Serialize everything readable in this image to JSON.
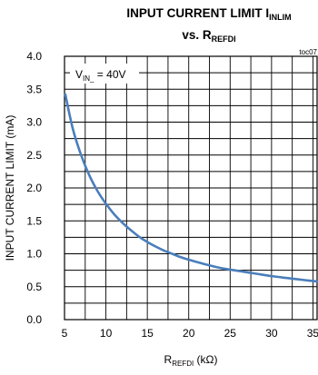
{
  "chart_data": {
    "type": "line",
    "title_line1": {
      "main": "INPUT CURRENT LIMIT I",
      "sub": "INLIM"
    },
    "title_line2": {
      "main": "vs. R",
      "sub": "REFDI"
    },
    "figure_id": "toc07",
    "xlabel": {
      "main": "R",
      "sub": "REFDI",
      "unit": " (kΩ)"
    },
    "ylabel": "INPUT CURRENT LIMIT (mA)",
    "xlim": [
      5,
      35.5
    ],
    "ylim": [
      0,
      4.0
    ],
    "x_ticks": [
      "5",
      "10",
      "15",
      "20",
      "25",
      "30",
      "35"
    ],
    "y_ticks": [
      "0.0",
      "0.5",
      "1.0",
      "1.5",
      "2.0",
      "2.5",
      "3.0",
      "3.5",
      "4.0"
    ],
    "grid": true,
    "annotation": {
      "pre": "V",
      "sub": "IN_",
      "post": " = 40V"
    },
    "series_color": "#4a7ebb",
    "series": [
      {
        "x": [
          5.1,
          6,
          7,
          8,
          9,
          10,
          11,
          12,
          13,
          14,
          15,
          16,
          17,
          18,
          19,
          20,
          22,
          24,
          26,
          28,
          30,
          32,
          34,
          35.5
        ],
        "values": [
          3.42,
          2.9,
          2.5,
          2.19,
          1.95,
          1.76,
          1.6,
          1.47,
          1.36,
          1.26,
          1.18,
          1.11,
          1.05,
          1.0,
          0.95,
          0.91,
          0.84,
          0.78,
          0.74,
          0.7,
          0.66,
          0.63,
          0.6,
          0.58
        ]
      }
    ]
  }
}
